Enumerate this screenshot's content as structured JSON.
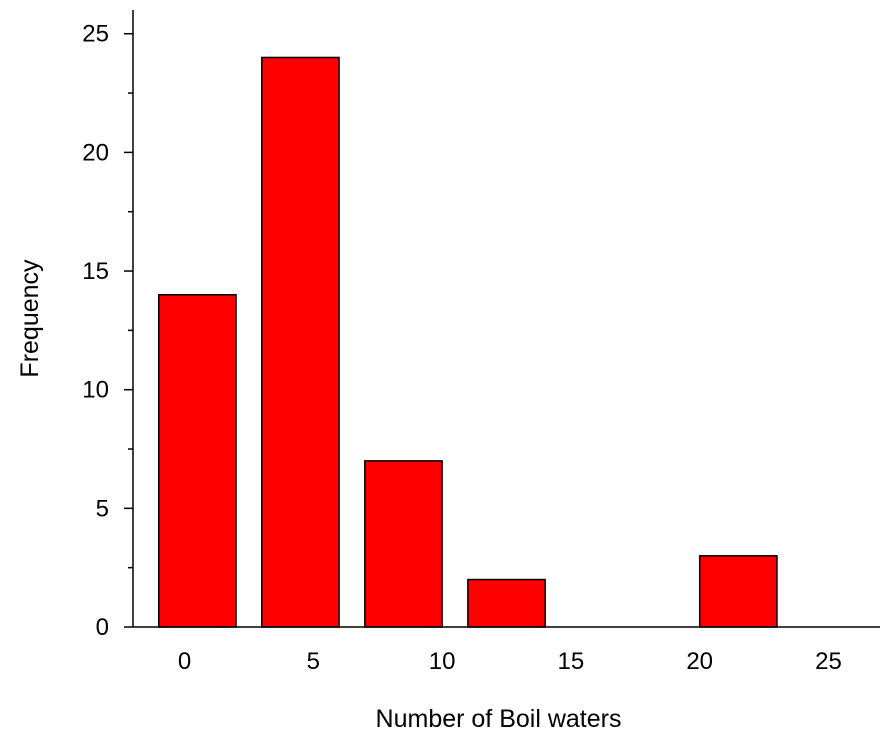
{
  "chart_data": {
    "type": "bar",
    "xlabel": "Number of Boil waters",
    "ylabel": "Frequency",
    "xlim": [
      -2,
      27
    ],
    "ylim": [
      0,
      26
    ],
    "x_ticks": [
      0,
      5,
      10,
      15,
      20,
      25
    ],
    "y_ticks": [
      0,
      5,
      10,
      15,
      20,
      25
    ],
    "bars": [
      {
        "x_start": -1,
        "x_end": 2,
        "value": 14
      },
      {
        "x_start": 3,
        "x_end": 6,
        "value": 24
      },
      {
        "x_start": 7,
        "x_end": 10,
        "value": 7
      },
      {
        "x_start": 11,
        "x_end": 14,
        "value": 2
      },
      {
        "x_start": 20,
        "x_end": 23,
        "value": 3
      }
    ],
    "bar_color": "#ff0000",
    "grid": false
  }
}
